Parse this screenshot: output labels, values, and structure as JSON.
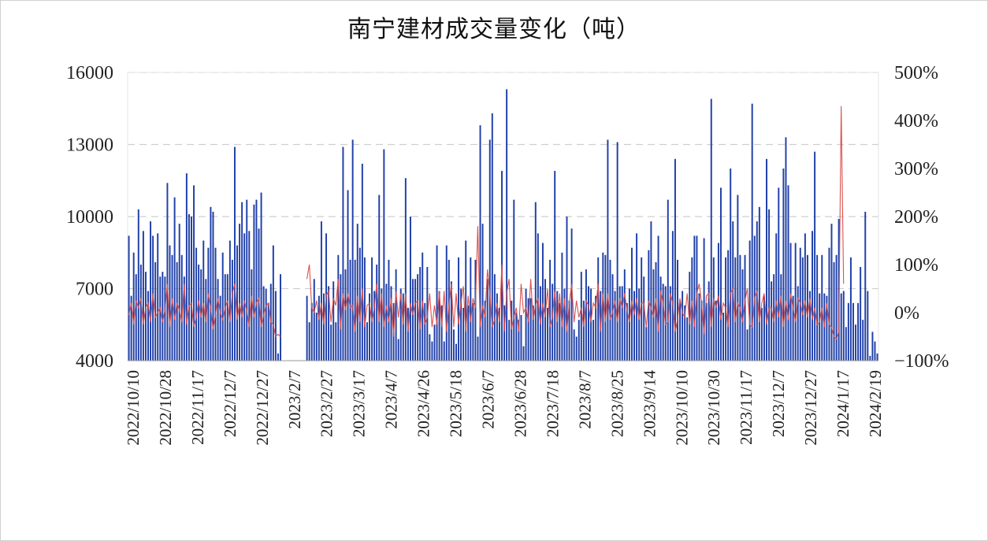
{
  "chart_data": {
    "type": "bar+line",
    "title": "南宁建材成交量变化（吨）",
    "xlabel": "",
    "ylabel": "",
    "y_left": {
      "range": [
        4000,
        16000
      ],
      "ticks": [
        "4000",
        "7000",
        "10000",
        "13000",
        "16000"
      ]
    },
    "y_right": {
      "range": [
        -100,
        500
      ],
      "ticks": [
        "−100%",
        "0%",
        "100%",
        "200%",
        "300%",
        "400%",
        "500%"
      ]
    },
    "grid": "horizontal dashed",
    "colors": {
      "bars": "#1f3fa8",
      "line": "#d9534f",
      "grid": "#cfcfcf"
    },
    "x_ticks": [
      "2022/10/10",
      "2022/10/28",
      "2022/11/17",
      "2022/12/7",
      "2022/12/27",
      "2023/2/7",
      "2023/2/27",
      "2023/3/17",
      "2023/4/7",
      "2023/4/26",
      "2023/5/18",
      "2023/6/7",
      "2023/6/28",
      "2023/7/18",
      "2023/8/7",
      "2023/8/25",
      "2023/9/14",
      "2023/10/10",
      "2023/10/30",
      "2023/11/17",
      "2023/12/7",
      "2023/12/27",
      "2024/1/17",
      "2024/2/19"
    ],
    "series": [
      {
        "kind": "bar",
        "axis": "left",
        "values": [
          9200,
          6700,
          8500,
          7600,
          10300,
          8000,
          9400,
          7700,
          6900,
          9800,
          9200,
          8100,
          9300,
          7500,
          7700,
          7500,
          11400,
          8800,
          8400,
          10800,
          8100,
          9700,
          8400,
          7500,
          11800,
          10100,
          10000,
          11300,
          8700,
          8000,
          7800,
          9000,
          7400,
          8700,
          10400,
          10200,
          8700,
          7400,
          6700,
          8500,
          7600,
          7600,
          9000,
          8200,
          12900,
          8800,
          9700,
          10600,
          9300,
          10700,
          9400,
          7800,
          10500,
          10700,
          9500,
          11000,
          7100,
          7000,
          6400,
          7200,
          8800,
          6900,
          4300,
          7600,
          null,
          null,
          null,
          null,
          null,
          null,
          null,
          null,
          null,
          null,
          6700,
          5600,
          6400,
          7400,
          6000,
          6700,
          9800,
          6800,
          9300,
          7100,
          5500,
          7300,
          5600,
          8400,
          7600,
          12900,
          7800,
          11100,
          8200,
          13200,
          8200,
          9700,
          8700,
          12200,
          8300,
          5600,
          6800,
          8300,
          6900,
          8000,
          10900,
          7000,
          12800,
          7200,
          8200,
          7100,
          6400,
          7800,
          4900,
          7000,
          6800,
          11600,
          6200,
          10000,
          7400,
          7400,
          7600,
          7900,
          8500,
          6400,
          7900,
          5100,
          4800,
          5500,
          8800,
          6900,
          6300,
          4800,
          8800,
          8200,
          7300,
          5300,
          4700,
          8300,
          7000,
          6200,
          9000,
          6300,
          8300,
          6400,
          8200,
          5000,
          13800,
          9700,
          6500,
          7400,
          13200,
          14300,
          7600,
          6800,
          6200,
          11900,
          6300,
          15300,
          5700,
          6500,
          10700,
          6000,
          5700,
          5900,
          4600,
          7000,
          6600,
          6600,
          6300,
          10600,
          9300,
          7100,
          8900,
          7400,
          6200,
          8200,
          7200,
          11900,
          6900,
          6400,
          8500,
          7000,
          10000,
          6500,
          9500,
          5300,
          5000,
          5700,
          7700,
          6500,
          7800,
          7100,
          7000,
          5700,
          6700,
          8300,
          6900,
          8500,
          8400,
          13200,
          8200,
          7600,
          6900,
          13100,
          7100,
          7100,
          7800,
          6400,
          7000,
          8700,
          6900,
          9300,
          7000,
          8300,
          7500,
          5400,
          8600,
          9800,
          7800,
          8100,
          9200,
          7500,
          7200,
          7100,
          10700,
          7100,
          9400,
          12400,
          8200,
          6500,
          6900,
          6300,
          5800,
          7700,
          8300,
          9200,
          9200,
          6800,
          6500,
          9100,
          6400,
          7300,
          14900,
          8300,
          6500,
          8900,
          11200,
          6000,
          8300,
          8600,
          12000,
          9800,
          8300,
          10900,
          8400,
          7800,
          8400,
          5300,
          9000,
          14700,
          9200,
          9800,
          10400,
          6200,
          6700,
          12400,
          10300,
          7300,
          7600,
          9300,
          11200,
          7600,
          12000,
          13300,
          11300,
          8900,
          6700,
          8900,
          7100,
          8700,
          8300,
          9300,
          8400,
          6900,
          9400,
          12700,
          8400,
          6800,
          8400,
          6800,
          6700,
          8700,
          9700,
          8100,
          8400,
          9900,
          6800,
          6900,
          5400,
          6400,
          8300,
          6400,
          5500,
          6400,
          7900,
          5700,
          10200,
          6900,
          4200,
          5200,
          4800,
          4300
        ]
      },
      {
        "kind": "line",
        "axis": "right",
        "values": [
          -5,
          20,
          -25,
          25,
          10,
          30,
          -25,
          10,
          20,
          -20,
          40,
          -10,
          0,
          10,
          -20,
          5,
          60,
          -30,
          30,
          -15,
          20,
          5,
          -20,
          60,
          -25,
          15,
          20,
          -30,
          -10,
          25,
          -10,
          20,
          -20,
          40,
          10,
          -35,
          -5,
          30,
          0,
          -15,
          10,
          25,
          -20,
          40,
          60,
          -15,
          20,
          -10,
          25,
          5,
          -30,
          35,
          -10,
          20,
          30,
          -30,
          -5,
          15,
          20,
          -20,
          -25,
          -50,
          -45,
          -50,
          null,
          null,
          null,
          null,
          null,
          null,
          null,
          null,
          null,
          null,
          70,
          100,
          10,
          0,
          25,
          -15,
          20,
          -25,
          35,
          45,
          -20,
          30,
          15,
          70,
          -35,
          40,
          5,
          40,
          10,
          15,
          -40,
          35,
          -20,
          50,
          -30,
          15,
          20,
          -20,
          10,
          60,
          -20,
          40,
          -30,
          15,
          -20,
          30,
          -50,
          45,
          -10,
          40,
          -25,
          40,
          -40,
          20,
          -5,
          20,
          25,
          -35,
          25,
          -25,
          -10,
          40,
          -30,
          15,
          -25,
          45,
          -30,
          45,
          -40,
          15,
          60,
          -30,
          40,
          -25,
          20,
          55,
          -40,
          35,
          -20,
          30,
          10,
          180,
          -30,
          15,
          -10,
          90,
          40,
          -30,
          -15,
          20,
          -20,
          100,
          -40,
          40,
          70,
          -35,
          -10,
          10,
          -40,
          60,
          0,
          10,
          -20,
          70,
          -15,
          15,
          30,
          -25,
          20,
          -10,
          50,
          -30,
          -10,
          45,
          -20,
          40,
          -30,
          30,
          -40,
          20,
          60,
          -20,
          25,
          -10,
          10,
          -30,
          25,
          15,
          -20,
          20,
          10,
          60,
          -40,
          40,
          -20,
          40,
          -15,
          0,
          25,
          -20,
          30,
          10,
          40,
          5,
          -20,
          25,
          -5,
          30,
          -15,
          20,
          20,
          -30,
          25,
          10,
          -10,
          30,
          -40,
          45,
          20,
          -25,
          -20,
          40,
          20,
          -40,
          -15,
          30,
          0,
          -10,
          40,
          -25,
          25,
          -30,
          40,
          60,
          20,
          -45,
          35,
          40,
          -30,
          30,
          10,
          35,
          -15,
          20,
          10,
          -30,
          40,
          50,
          -20,
          20,
          10,
          -20,
          25,
          50,
          -25,
          -30,
          30,
          45,
          -20,
          20,
          40,
          -25,
          10,
          10,
          -20,
          25,
          -10,
          35,
          -30,
          25,
          -15,
          40,
          10,
          -20,
          30,
          20,
          -5,
          25,
          -10,
          30,
          -15,
          10,
          -25,
          -20,
          10,
          -30,
          20,
          -25,
          -30,
          -50,
          -55,
          -40,
          430,
          60
        ]
      }
    ]
  }
}
